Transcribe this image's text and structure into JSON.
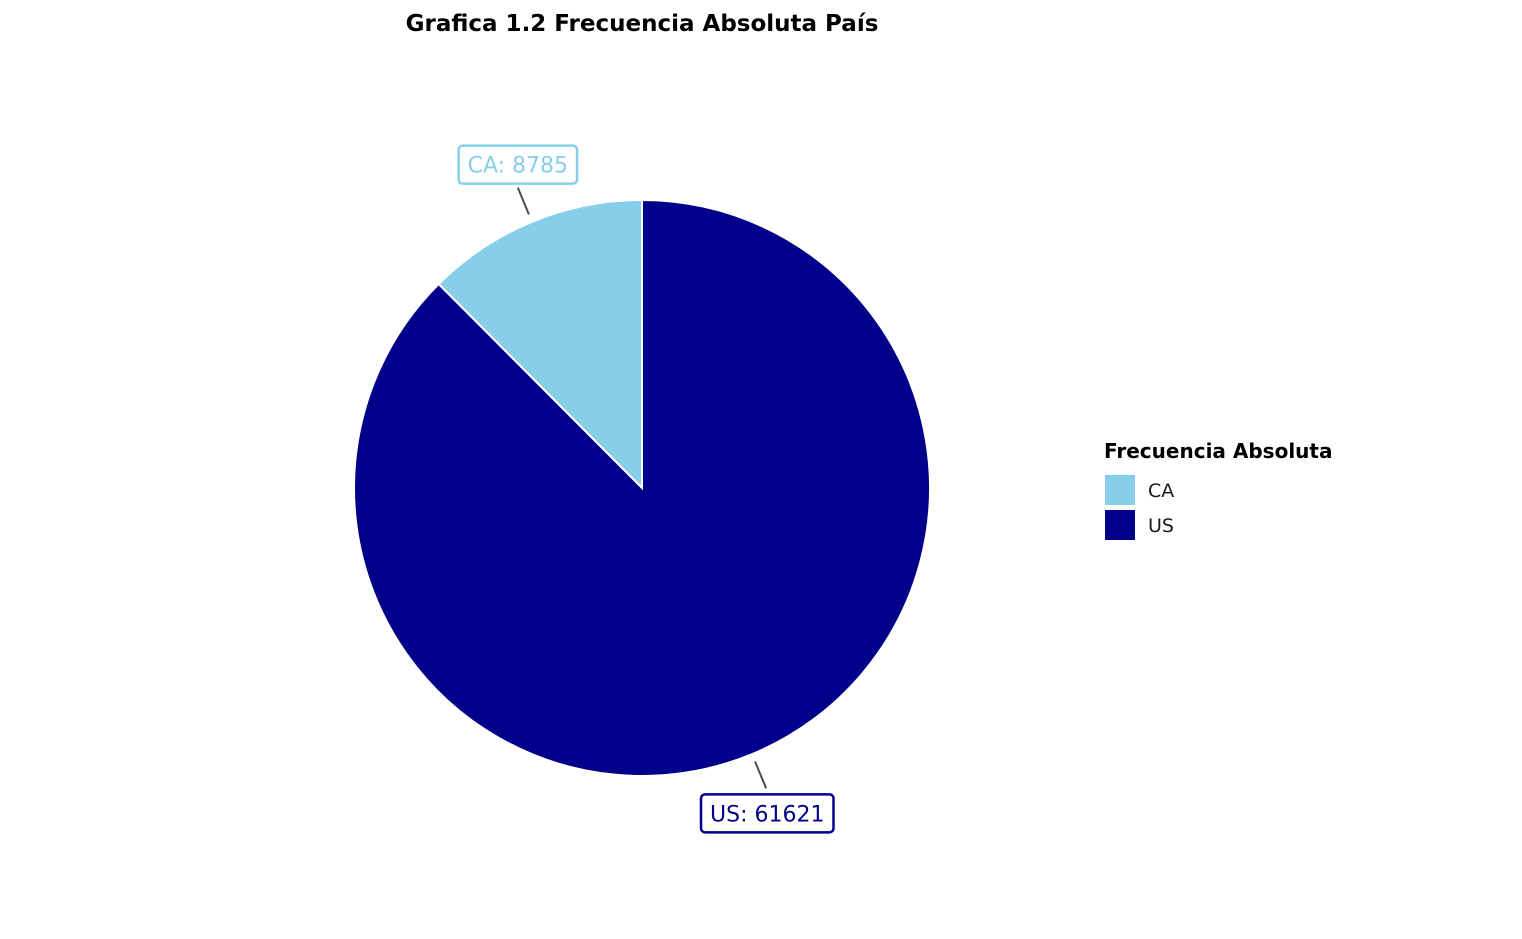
{
  "chart_data": {
    "type": "pie",
    "title": "Grafica 1.2 Frecuencia Absoluta País",
    "legend": {
      "title": "Frecuencia Absoluta",
      "placement": "right"
    },
    "slices": [
      {
        "label": "CA",
        "value": 8785,
        "color": "#87CEEB",
        "data_label": "CA: 8785"
      },
      {
        "label": "US",
        "value": 61621,
        "color": "#00008B",
        "data_label": "US: 61621"
      }
    ],
    "start": "top",
    "direction": "counterclockwise",
    "slice_border_color": "#ffffff",
    "leader_line_color": "#4d4d4d"
  }
}
